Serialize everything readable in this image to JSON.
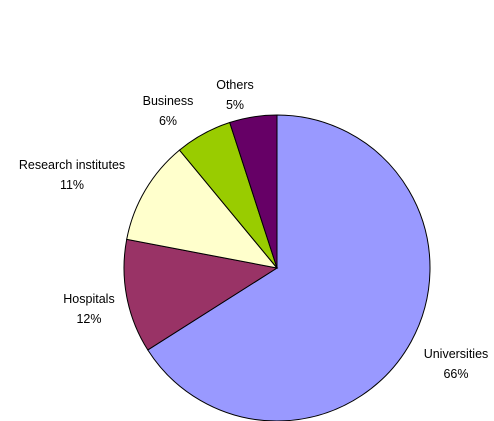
{
  "chart_data": {
    "type": "pie",
    "title": "",
    "start": "12 o'clock",
    "direction": "clockwise",
    "slices": [
      {
        "label": "Universities",
        "value": 66,
        "value_label": "66%",
        "color": "#9999ff"
      },
      {
        "label": "Hospitals",
        "value": 12,
        "value_label": "12%",
        "color": "#993366"
      },
      {
        "label": "Research institutes",
        "value": 11,
        "value_label": "11%",
        "color": "#ffffcc"
      },
      {
        "label": "Business",
        "value": 6,
        "value_label": "6%",
        "color": "#99cc00"
      },
      {
        "label": "Others",
        "value": 5,
        "value_label": "5%",
        "color": "#660066"
      }
    ]
  }
}
